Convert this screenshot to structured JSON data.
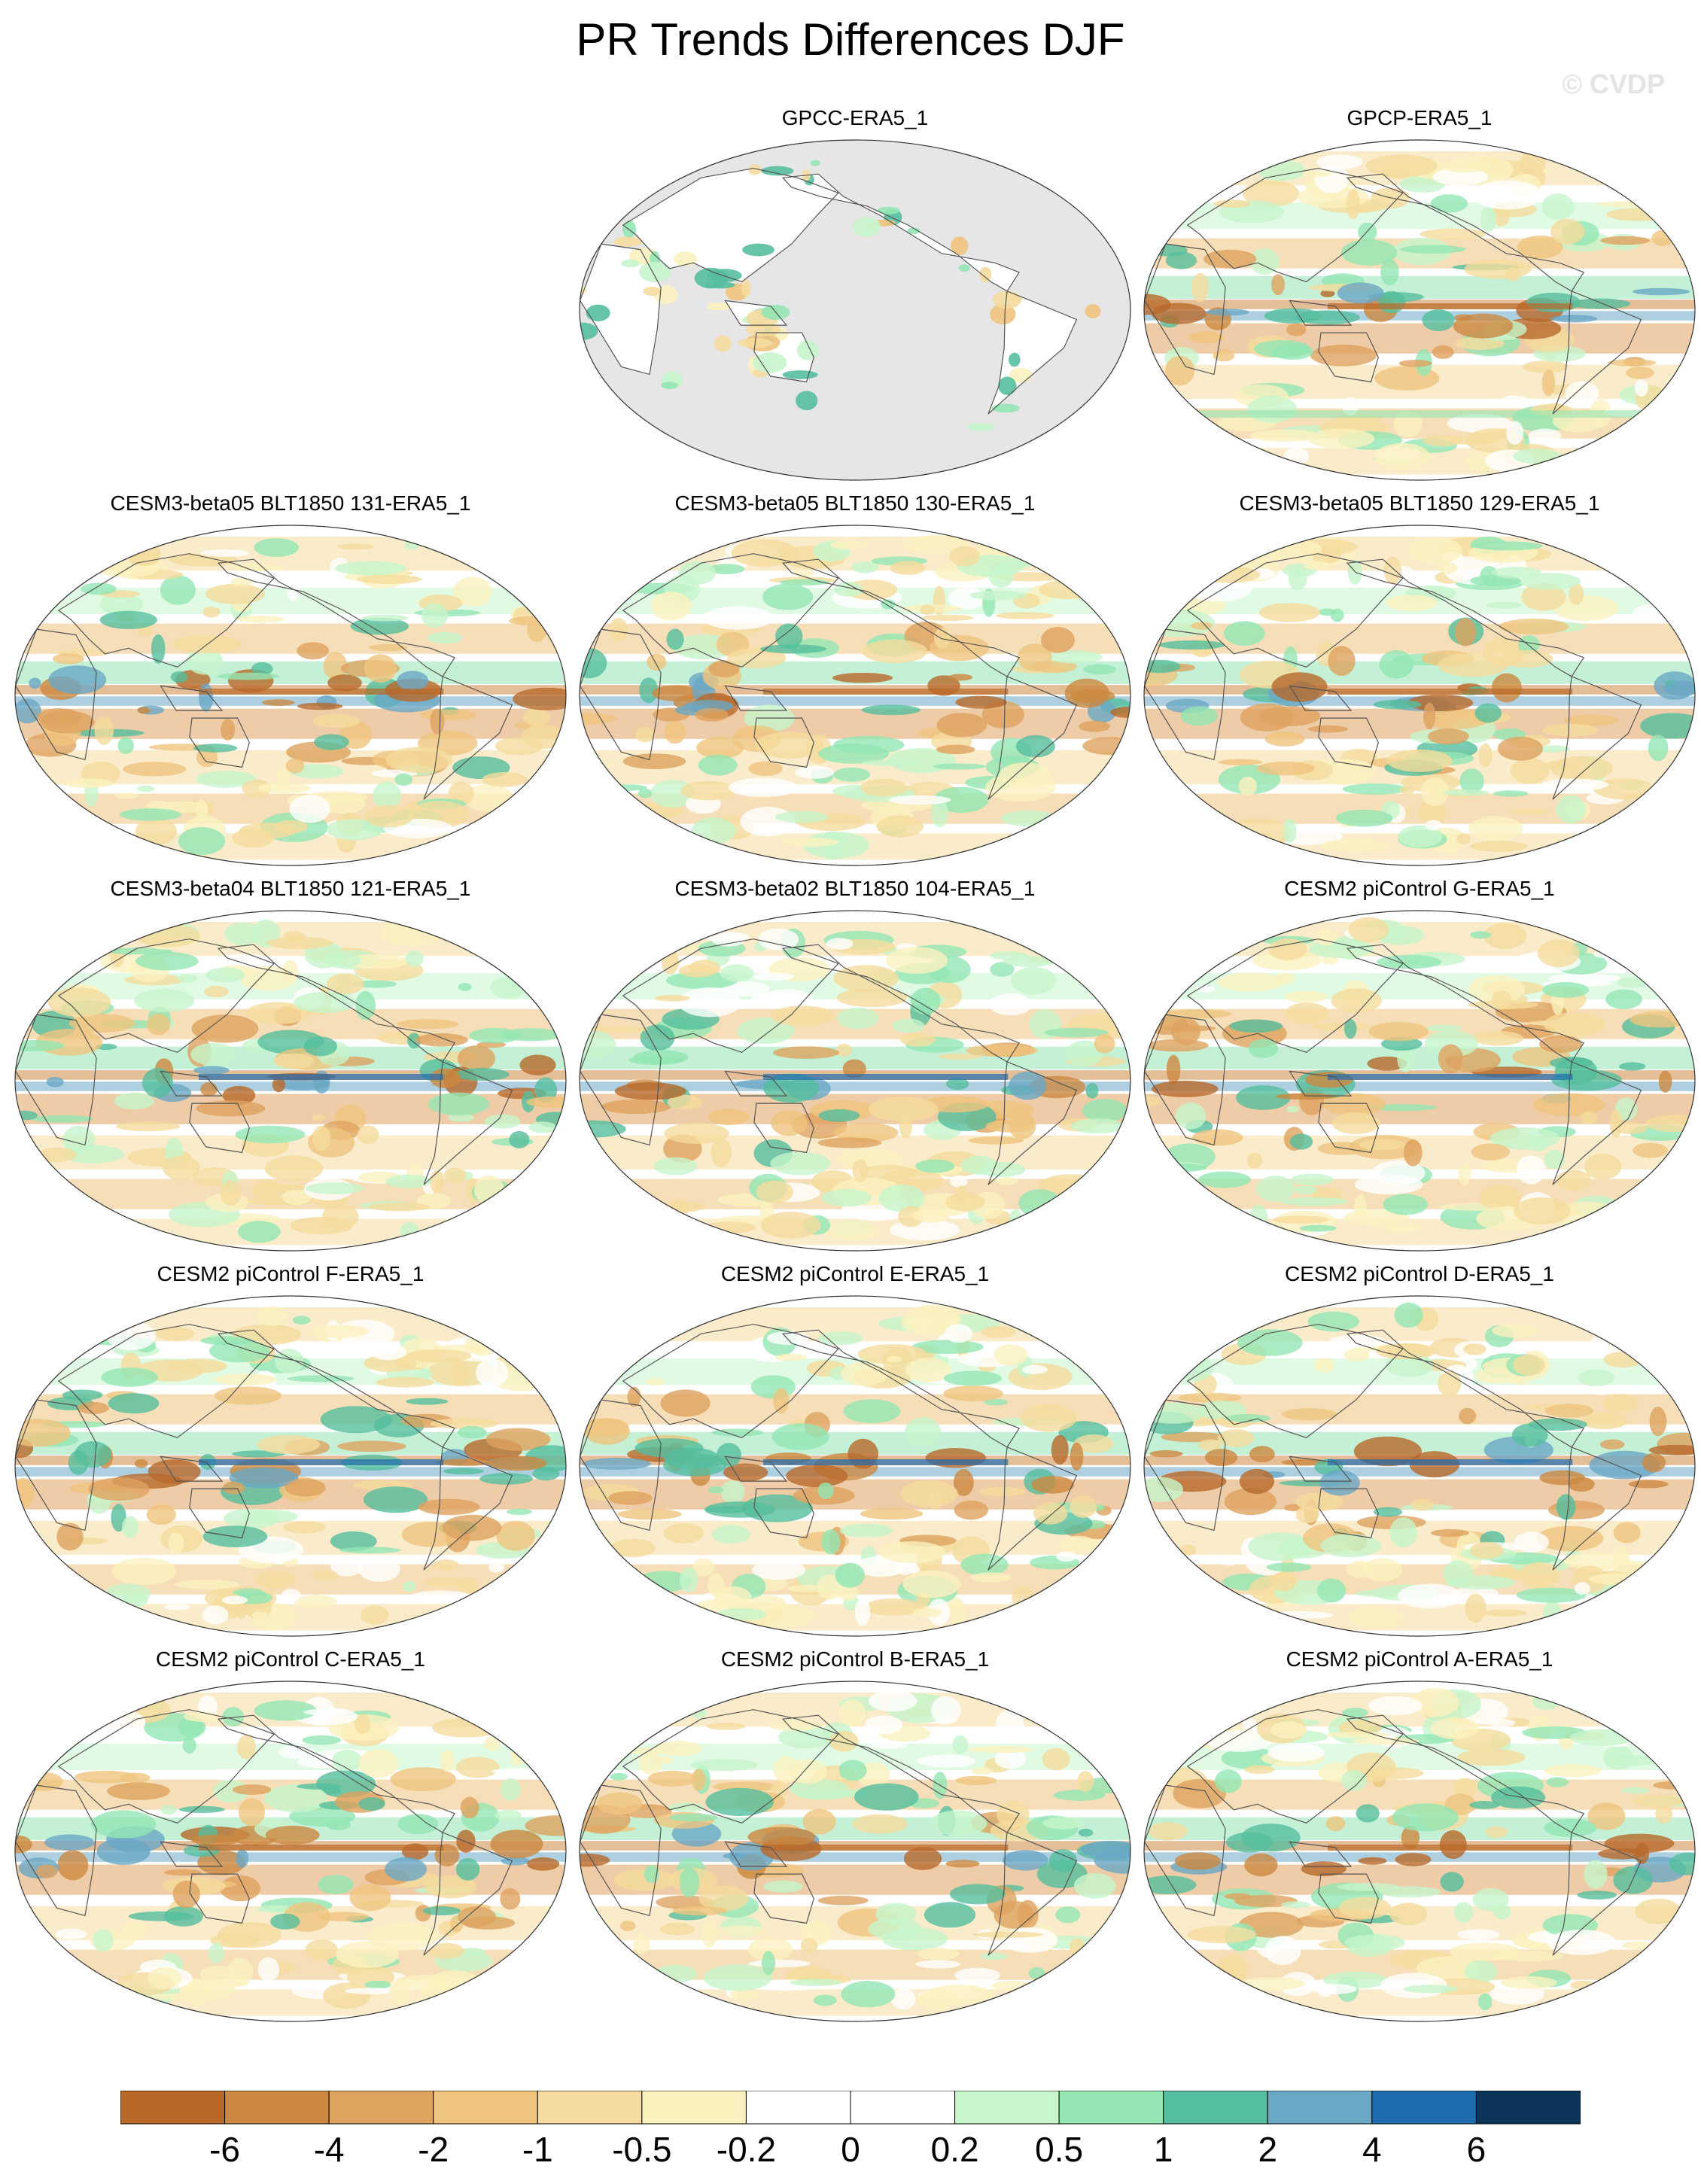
{
  "title": "PR Trends Differences DJF",
  "watermark": "© CVDP",
  "colors": {
    "land_mask": "#e6e6e6",
    "coast": "#555555"
  },
  "colorbar": {
    "colors": [
      "#b8692a",
      "#cc8840",
      "#dea35f",
      "#efc47e",
      "#f5dc9e",
      "#fbf1bf",
      "#ffffff",
      "#ffffff",
      "#c7f5cc",
      "#94e6b4",
      "#55be9e",
      "#6aa8c6",
      "#1f6bb0",
      "#0b3558"
    ],
    "labels": [
      "-6",
      "-4",
      "-2",
      "-1",
      "-0.5",
      "-0.2",
      "0",
      "0.2",
      "0.5",
      "1",
      "2",
      "4",
      "6"
    ]
  },
  "panels": [
    {
      "title": "GPCC-ERA5_1",
      "type": "gpcc"
    },
    {
      "title": "GPCP-ERA5_1",
      "type": "obs"
    },
    {
      "title": "CESM3-beta05 BLT1850 131-ERA5_1",
      "type": "model"
    },
    {
      "title": "CESM3-beta05 BLT1850 130-ERA5_1",
      "type": "model"
    },
    {
      "title": "CESM3-beta05 BLT1850 129-ERA5_1",
      "type": "model"
    },
    {
      "title": "CESM3-beta04 BLT1850 121-ERA5_1",
      "type": "model"
    },
    {
      "title": "CESM3-beta02 BLT1850 104-ERA5_1",
      "type": "model"
    },
    {
      "title": "CESM2 piControl G-ERA5_1",
      "type": "model"
    },
    {
      "title": "CESM2 piControl F-ERA5_1",
      "type": "model"
    },
    {
      "title": "CESM2 piControl E-ERA5_1",
      "type": "model"
    },
    {
      "title": "CESM2 piControl D-ERA5_1",
      "type": "model"
    },
    {
      "title": "CESM2 piControl C-ERA5_1",
      "type": "model"
    },
    {
      "title": "CESM2 piControl B-ERA5_1",
      "type": "model"
    },
    {
      "title": "CESM2 piControl A-ERA5_1",
      "type": "model"
    }
  ]
}
